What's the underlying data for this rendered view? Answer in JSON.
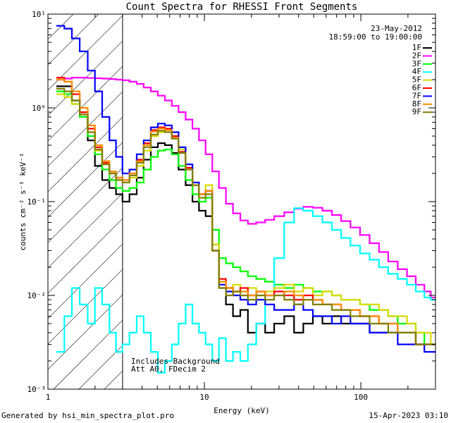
{
  "chart_data": {
    "type": "line",
    "title": "Count Spectra for RHESSI Front Segments",
    "xlabel": "Energy (keV)",
    "ylabel": "counts cm⁻² s⁻¹ keV⁻¹",
    "xscale": "log",
    "yscale": "log",
    "xlim": [
      1.0,
      300.0
    ],
    "ylim": [
      0.001,
      10.0
    ],
    "x_tick_labels": [
      "1",
      "10",
      "100"
    ],
    "y_tick_labels": [
      "10⁻³",
      "10⁻²",
      "10⁻¹",
      "10⁰",
      "10¹"
    ],
    "hatched_region_max_kev": 3.0,
    "date": "23-May-2012",
    "time_range": "18:59:00 to 19:00:00",
    "annotations": [
      "Includes Background",
      "Att A0, FDecim 2"
    ],
    "energy_bins_kev": [
      1.2,
      1.35,
      1.5,
      1.7,
      1.9,
      2.1,
      2.35,
      2.6,
      2.85,
      3.15,
      3.5,
      3.9,
      4.3,
      4.8,
      5.3,
      5.9,
      6.5,
      7.2,
      8.0,
      8.8,
      9.7,
      10.7,
      11.8,
      13.0,
      14.5,
      16.0,
      18.0,
      20.0,
      23.0,
      26.0,
      30.0,
      35.0,
      40.0,
      46.0,
      53.0,
      61.0,
      70.0,
      80.0,
      92.0,
      106.0,
      122.0,
      140.0,
      160.0,
      185.0,
      210.0,
      240.0,
      270.0,
      290.0
    ],
    "series": [
      {
        "name": "1F",
        "color": "#000000",
        "values": [
          1.7,
          1.7,
          1.2,
          0.8,
          0.45,
          0.24,
          0.17,
          0.14,
          0.12,
          0.1,
          0.12,
          0.18,
          0.28,
          0.38,
          0.42,
          0.4,
          0.33,
          0.22,
          0.15,
          0.1,
          0.08,
          0.07,
          0.035,
          0.012,
          0.008,
          0.006,
          0.007,
          0.004,
          0.005,
          0.004,
          0.005,
          0.006,
          0.004,
          0.005,
          0.006,
          0.005,
          0.006,
          0.005,
          0.005,
          0.005,
          0.004,
          0.004,
          0.004,
          0.004,
          0.004,
          0.003,
          0.003,
          0.003
        ]
      },
      {
        "name": "2F",
        "color": "#ff00ff",
        "values": [
          2.0,
          2.05,
          2.1,
          2.1,
          2.08,
          2.07,
          2.05,
          2.03,
          2.0,
          1.97,
          1.9,
          1.8,
          1.65,
          1.5,
          1.35,
          1.2,
          1.05,
          0.9,
          0.75,
          0.6,
          0.45,
          0.32,
          0.21,
          0.14,
          0.095,
          0.075,
          0.063,
          0.058,
          0.06,
          0.064,
          0.07,
          0.077,
          0.084,
          0.088,
          0.086,
          0.08,
          0.072,
          0.062,
          0.053,
          0.044,
          0.036,
          0.029,
          0.023,
          0.019,
          0.016,
          0.013,
          0.011,
          0.0095
        ]
      },
      {
        "name": "3F",
        "color": "#00ff00",
        "values": [
          1.5,
          1.4,
          1.1,
          0.8,
          0.5,
          0.32,
          0.22,
          0.17,
          0.14,
          0.13,
          0.14,
          0.16,
          0.22,
          0.3,
          0.35,
          0.36,
          0.32,
          0.24,
          0.17,
          0.12,
          0.1,
          0.11,
          0.05,
          0.025,
          0.022,
          0.02,
          0.018,
          0.016,
          0.015,
          0.014,
          0.013,
          0.012,
          0.013,
          0.012,
          0.011,
          0.011,
          0.01,
          0.009,
          0.009,
          0.008,
          0.007,
          0.007,
          0.006,
          0.005,
          0.005,
          0.004,
          0.003,
          0.003
        ]
      },
      {
        "name": "4F",
        "color": "#00ffff",
        "values": [
          0.0025,
          0.006,
          0.012,
          0.008,
          0.005,
          0.012,
          0.008,
          0.004,
          0.0025,
          0.003,
          0.004,
          0.006,
          0.004,
          0.0025,
          0.0015,
          0.002,
          0.003,
          0.005,
          0.008,
          0.005,
          0.004,
          0.003,
          0.002,
          0.0035,
          0.002,
          0.0025,
          0.002,
          0.003,
          0.005,
          0.01,
          0.025,
          0.06,
          0.085,
          0.08,
          0.07,
          0.06,
          0.05,
          0.041,
          0.034,
          0.028,
          0.024,
          0.02,
          0.017,
          0.015,
          0.013,
          0.011,
          0.0095,
          0.009
        ]
      },
      {
        "name": "5F",
        "color": "#d9d900",
        "values": [
          1.4,
          1.3,
          1.1,
          0.9,
          0.55,
          0.35,
          0.25,
          0.2,
          0.17,
          0.16,
          0.18,
          0.24,
          0.35,
          0.5,
          0.55,
          0.58,
          0.5,
          0.36,
          0.25,
          0.16,
          0.12,
          0.15,
          0.035,
          0.014,
          0.012,
          0.013,
          0.011,
          0.012,
          0.01,
          0.011,
          0.012,
          0.013,
          0.011,
          0.012,
          0.01,
          0.011,
          0.01,
          0.009,
          0.009,
          0.008,
          0.008,
          0.007,
          0.006,
          0.006,
          0.005,
          0.004,
          0.004,
          0.003
        ]
      },
      {
        "name": "6F",
        "color": "#ff0000",
        "values": [
          2.1,
          1.9,
          1.4,
          0.9,
          0.6,
          0.38,
          0.26,
          0.2,
          0.18,
          0.17,
          0.2,
          0.28,
          0.42,
          0.58,
          0.62,
          0.6,
          0.5,
          0.34,
          0.23,
          0.15,
          0.12,
          0.13,
          0.03,
          0.015,
          0.012,
          0.011,
          0.012,
          0.01,
          0.011,
          0.01,
          0.011,
          0.01,
          0.009,
          0.01,
          0.009,
          0.008,
          0.008,
          0.007,
          0.007,
          0.006,
          0.006,
          0.005,
          0.005,
          0.004,
          0.004,
          0.003,
          0.003,
          0.003
        ]
      },
      {
        "name": "7F",
        "color": "#0000ff",
        "values": [
          7.5,
          7.0,
          5.5,
          4.0,
          2.5,
          1.5,
          0.8,
          0.45,
          0.3,
          0.2,
          0.22,
          0.32,
          0.45,
          0.62,
          0.68,
          0.65,
          0.55,
          0.38,
          0.25,
          0.16,
          0.12,
          0.13,
          0.03,
          0.013,
          0.011,
          0.01,
          0.009,
          0.008,
          0.009,
          0.008,
          0.007,
          0.007,
          0.008,
          0.007,
          0.006,
          0.006,
          0.005,
          0.006,
          0.005,
          0.005,
          0.004,
          0.004,
          0.004,
          0.003,
          0.003,
          0.003,
          0.0025,
          0.0025
        ]
      },
      {
        "name": "8F",
        "color": "#ff8c00",
        "values": [
          2.0,
          1.9,
          1.5,
          1.0,
          0.65,
          0.4,
          0.27,
          0.21,
          0.18,
          0.17,
          0.2,
          0.27,
          0.4,
          0.56,
          0.6,
          0.58,
          0.48,
          0.33,
          0.22,
          0.15,
          0.12,
          0.13,
          0.03,
          0.014,
          0.012,
          0.011,
          0.011,
          0.01,
          0.011,
          0.01,
          0.01,
          0.011,
          0.01,
          0.009,
          0.009,
          0.008,
          0.008,
          0.007,
          0.007,
          0.006,
          0.006,
          0.005,
          0.005,
          0.004,
          0.004,
          0.003,
          0.003,
          0.003
        ]
      },
      {
        "name": "9F",
        "color": "#808000",
        "values": [
          1.6,
          1.5,
          1.2,
          0.85,
          0.55,
          0.36,
          0.25,
          0.2,
          0.17,
          0.16,
          0.19,
          0.26,
          0.38,
          0.52,
          0.57,
          0.55,
          0.47,
          0.33,
          0.22,
          0.15,
          0.11,
          0.12,
          0.03,
          0.012,
          0.01,
          0.011,
          0.01,
          0.009,
          0.01,
          0.009,
          0.01,
          0.009,
          0.008,
          0.009,
          0.008,
          0.008,
          0.007,
          0.007,
          0.006,
          0.006,
          0.005,
          0.005,
          0.004,
          0.004,
          0.004,
          0.003,
          0.003,
          0.003
        ]
      }
    ]
  },
  "footer": {
    "generated_by": "Generated by hsi_min_spectra_plot.pro",
    "timestamp": "15-Apr-2023 03:10"
  }
}
